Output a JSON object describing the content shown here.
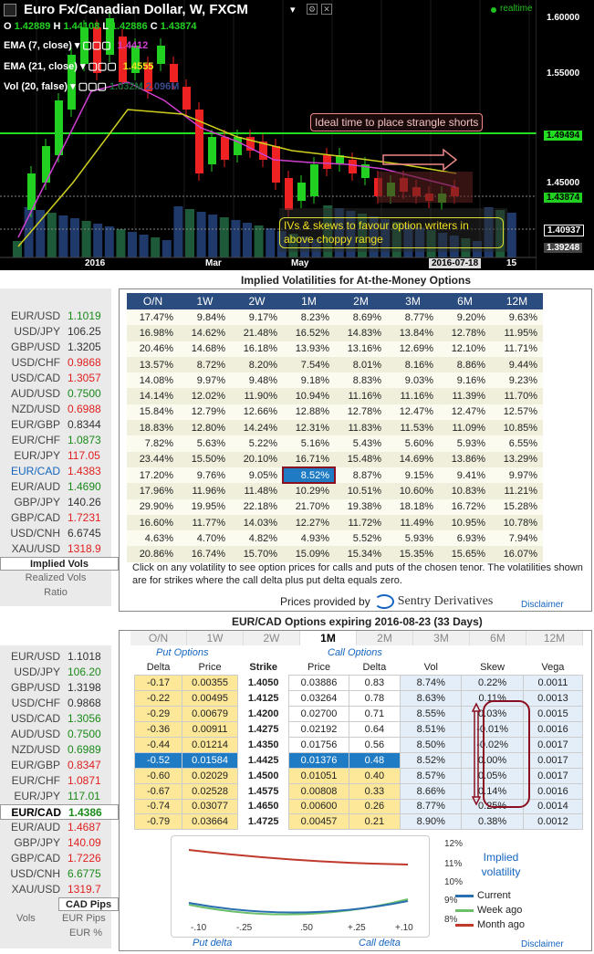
{
  "chart": {
    "title": "Euro Fx/Canadian Dollar, W, FXCM",
    "realtime": "realtime",
    "ohlc": {
      "o_label": "O",
      "o": "1.42889",
      "h_label": "H",
      "h": "1.44108",
      "l_label": "L",
      "l": "1.42886",
      "c_label": "C",
      "c": "1.43874"
    },
    "ema7": {
      "label": "EMA (7, close)",
      "value": "1.4412"
    },
    "ema21": {
      "label": "EMA (21, close)",
      "value": "1.4555"
    },
    "vol": {
      "label": "Vol (20, false)",
      "v1": "1.032M",
      "v2": "2.096M"
    },
    "price_labels": [
      "1.60000",
      "1.55000",
      "1.49494",
      "1.45000",
      "1.43874",
      "1.40937",
      "1.39248"
    ],
    "time_labels": [
      "2016",
      "Mar",
      "May",
      "2016-07-18",
      "15"
    ],
    "annotation1": "Ideal time to place strangle shorts",
    "annotation2": "IVs & skews to favour option writers in above choppy range",
    "colors": {
      "up": "#22d022",
      "down": "#ee2222",
      "ema7": "#d040d0",
      "ema21": "#d0d020",
      "hline": "#22dd22"
    }
  },
  "iv": {
    "title": "Implied Volatilities for At-the-Money Options",
    "headers": [
      "O/N",
      "1W",
      "2W",
      "1M",
      "2M",
      "3M",
      "6M",
      "12M"
    ],
    "rows": [
      [
        "17.47%",
        "9.84%",
        "9.17%",
        "8.23%",
        "8.69%",
        "8.77%",
        "9.20%",
        "9.63%"
      ],
      [
        "16.98%",
        "14.62%",
        "21.48%",
        "16.52%",
        "14.83%",
        "13.84%",
        "12.78%",
        "11.95%"
      ],
      [
        "20.46%",
        "14.68%",
        "16.18%",
        "13.93%",
        "13.16%",
        "12.69%",
        "12.10%",
        "11.71%"
      ],
      [
        "13.57%",
        "8.72%",
        "8.20%",
        "7.54%",
        "8.01%",
        "8.16%",
        "8.86%",
        "9.44%"
      ],
      [
        "14.08%",
        "9.97%",
        "9.48%",
        "9.18%",
        "8.83%",
        "9.03%",
        "9.16%",
        "9.23%"
      ],
      [
        "14.14%",
        "12.02%",
        "11.90%",
        "10.94%",
        "11.16%",
        "11.16%",
        "11.39%",
        "11.70%"
      ],
      [
        "15.84%",
        "12.79%",
        "12.66%",
        "12.88%",
        "12.78%",
        "12.47%",
        "12.47%",
        "12.57%"
      ],
      [
        "18.83%",
        "12.80%",
        "14.24%",
        "12.31%",
        "11.83%",
        "11.53%",
        "11.09%",
        "10.85%"
      ],
      [
        "7.82%",
        "5.63%",
        "5.22%",
        "5.16%",
        "5.43%",
        "5.60%",
        "5.93%",
        "6.55%"
      ],
      [
        "23.44%",
        "15.50%",
        "20.10%",
        "16.71%",
        "15.48%",
        "14.69%",
        "13.86%",
        "13.29%"
      ],
      [
        "17.20%",
        "9.76%",
        "9.05%",
        "8.52%",
        "8.87%",
        "9.15%",
        "9.41%",
        "9.97%"
      ],
      [
        "17.96%",
        "11.96%",
        "11.48%",
        "10.29%",
        "10.51%",
        "10.60%",
        "10.83%",
        "11.21%"
      ],
      [
        "29.90%",
        "19.95%",
        "22.18%",
        "21.70%",
        "19.38%",
        "18.18%",
        "16.72%",
        "15.28%"
      ],
      [
        "16.60%",
        "11.77%",
        "14.03%",
        "12.27%",
        "11.72%",
        "11.49%",
        "10.95%",
        "10.78%"
      ],
      [
        "4.63%",
        "4.70%",
        "4.82%",
        "4.93%",
        "5.52%",
        "5.93%",
        "6.93%",
        "7.94%"
      ],
      [
        "20.86%",
        "16.74%",
        "15.70%",
        "15.09%",
        "15.34%",
        "15.35%",
        "15.65%",
        "16.07%"
      ]
    ],
    "note": "Click on any volatility to see option prices for calls and puts of the chosen tenor. The volatilities shown are for strikes where the call delta plus put delta equals zero.",
    "provided": "Prices provided by",
    "brand": "Sentry Derivatives",
    "disclaimer": "Disclaimer"
  },
  "side1": {
    "pairs": [
      {
        "p": "EUR/USD",
        "v": "1.1019",
        "c": "up"
      },
      {
        "p": "USD/JPY",
        "v": "106.25",
        "c": "nt"
      },
      {
        "p": "GBP/USD",
        "v": "1.3205",
        "c": "nt"
      },
      {
        "p": "USD/CHF",
        "v": "0.9868",
        "c": "dn"
      },
      {
        "p": "USD/CAD",
        "v": "1.3057",
        "c": "dn"
      },
      {
        "p": "AUD/USD",
        "v": "0.7500",
        "c": "up"
      },
      {
        "p": "NZD/USD",
        "v": "0.6988",
        "c": "dn"
      },
      {
        "p": "EUR/GBP",
        "v": "0.8344",
        "c": "nt"
      },
      {
        "p": "EUR/CHF",
        "v": "1.0873",
        "c": "up"
      },
      {
        "p": "EUR/JPY",
        "v": "117.05",
        "c": "dn"
      },
      {
        "p": "EUR/CAD",
        "v": "1.4383",
        "c": "dn"
      },
      {
        "p": "EUR/AUD",
        "v": "1.4690",
        "c": "up"
      },
      {
        "p": "GBP/JPY",
        "v": "140.26",
        "c": "nt"
      },
      {
        "p": "GBP/CAD",
        "v": "1.7231",
        "c": "dn"
      },
      {
        "p": "USD/CNH",
        "v": "6.6745",
        "c": "nt"
      },
      {
        "p": "XAU/USD",
        "v": "1318.9",
        "c": "dn"
      }
    ],
    "tab1": "Implied Vols",
    "tab2": "Realized Vols",
    "tab3": "Ratio"
  },
  "opt": {
    "title": "EUR/CAD Options expiring 2016-08-23 (33 Days)",
    "tenors": [
      "O/N",
      "1W",
      "2W",
      "1M",
      "2M",
      "3M",
      "6M",
      "12M"
    ],
    "put_label": "Put Options",
    "call_label": "Call Options",
    "headers": [
      "Delta",
      "Price",
      "Strike",
      "Price",
      "Delta",
      "Vol",
      "Skew",
      "Vega"
    ],
    "rows": [
      [
        "-0.17",
        "0.00355",
        "1.4050",
        "0.03886",
        "0.83",
        "8.74%",
        "0.22%",
        "0.0011"
      ],
      [
        "-0.22",
        "0.00495",
        "1.4125",
        "0.03264",
        "0.78",
        "8.63%",
        "0.11%",
        "0.0013"
      ],
      [
        "-0.29",
        "0.00679",
        "1.4200",
        "0.02700",
        "0.71",
        "8.55%",
        "0.03%",
        "0.0015"
      ],
      [
        "-0.36",
        "0.00911",
        "1.4275",
        "0.02192",
        "0.64",
        "8.51%",
        "-0.01%",
        "0.0016"
      ],
      [
        "-0.44",
        "0.01214",
        "1.4350",
        "0.01756",
        "0.56",
        "8.50%",
        "-0.02%",
        "0.0017"
      ],
      [
        "-0.52",
        "0.01584",
        "1.4425",
        "0.01376",
        "0.48",
        "8.52%",
        "0.00%",
        "0.0017"
      ],
      [
        "-0.60",
        "0.02029",
        "1.4500",
        "0.01051",
        "0.40",
        "8.57%",
        "0.05%",
        "0.0017"
      ],
      [
        "-0.67",
        "0.02528",
        "1.4575",
        "0.00808",
        "0.33",
        "8.66%",
        "0.14%",
        "0.0016"
      ],
      [
        "-0.74",
        "0.03077",
        "1.4650",
        "0.00600",
        "0.26",
        "8.77%",
        "0.25%",
        "0.0014"
      ],
      [
        "-0.79",
        "0.03664",
        "1.4725",
        "0.00457",
        "0.21",
        "8.90%",
        "0.38%",
        "0.0012"
      ]
    ],
    "smile": {
      "y_labels": [
        "12%",
        "11%",
        "10%",
        "9%",
        "8%"
      ],
      "x_labels": [
        "-.10",
        "-.25",
        ".50",
        "+.25",
        "+.10"
      ],
      "put_delta": "Put delta",
      "call_delta": "Call delta",
      "legend_title": "Implied volatility",
      "legend": [
        {
          "name": "Current",
          "color": "#2a6fb0"
        },
        {
          "name": "Week ago",
          "color": "#6cc06c"
        },
        {
          "name": "Month ago",
          "color": "#c0392b"
        }
      ]
    },
    "disclaimer": "Disclaimer"
  },
  "side2": {
    "pairs": [
      {
        "p": "EUR/USD",
        "v": "1.1018",
        "c": "nt"
      },
      {
        "p": "USD/JPY",
        "v": "106.20",
        "c": "up"
      },
      {
        "p": "GBP/USD",
        "v": "1.3198",
        "c": "nt"
      },
      {
        "p": "USD/CHF",
        "v": "0.9868",
        "c": "nt"
      },
      {
        "p": "USD/CAD",
        "v": "1.3056",
        "c": "up"
      },
      {
        "p": "AUD/USD",
        "v": "0.7500",
        "c": "up"
      },
      {
        "p": "NZD/USD",
        "v": "0.6989",
        "c": "up"
      },
      {
        "p": "EUR/GBP",
        "v": "0.8347",
        "c": "dn"
      },
      {
        "p": "EUR/CHF",
        "v": "1.0871",
        "c": "dn"
      },
      {
        "p": "EUR/JPY",
        "v": "117.01",
        "c": "up"
      },
      {
        "p": "EUR/CAD",
        "v": "1.4386",
        "c": "up"
      },
      {
        "p": "EUR/AUD",
        "v": "1.4687",
        "c": "dn"
      },
      {
        "p": "GBP/JPY",
        "v": "140.09",
        "c": "dn"
      },
      {
        "p": "GBP/CAD",
        "v": "1.7226",
        "c": "dn"
      },
      {
        "p": "USD/CNH",
        "v": "6.6775",
        "c": "up"
      },
      {
        "p": "XAU/USD",
        "v": "1319.7",
        "c": "dn"
      }
    ],
    "pips_label": "CAD Pips",
    "vols": "Vols",
    "eur_pips": "EUR Pips",
    "eur_pct": "EUR %"
  }
}
